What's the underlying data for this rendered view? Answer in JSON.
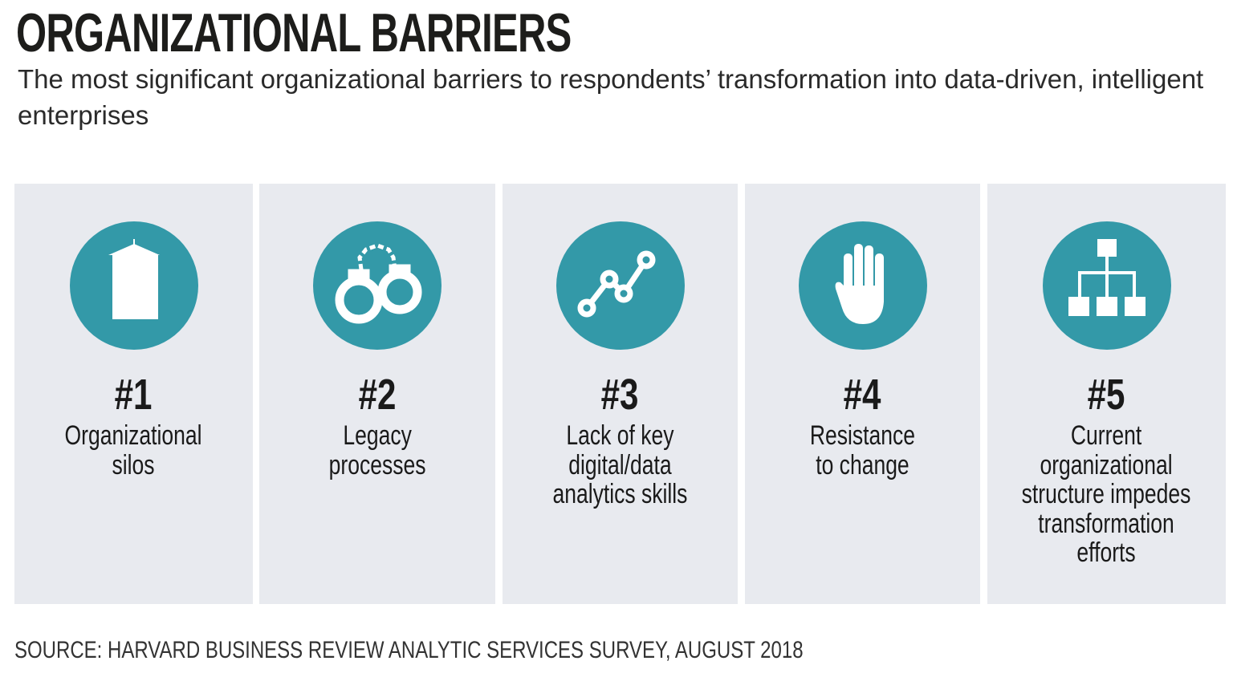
{
  "title": "ORGANIZATIONAL BARRIERS",
  "subtitle": "The most significant organizational barriers to respondents’ transformation into data-driven, intelligent enterprises",
  "accent": "#3399a8",
  "barriers": [
    {
      "rank": "#1",
      "label": "Organizational silos",
      "icon": "silo-icon"
    },
    {
      "rank": "#2",
      "label": "Legacy processes",
      "icon": "handcuffs-icon"
    },
    {
      "rank": "#3",
      "label": "Lack of key digital/data analytics skills",
      "icon": "line-chart-icon"
    },
    {
      "rank": "#4",
      "label": "Resistance to change",
      "icon": "hand-stop-icon"
    },
    {
      "rank": "#5",
      "label": "Current organizational structure impedes transformation efforts",
      "icon": "org-chart-icon"
    }
  ],
  "source": "SOURCE: HARVARD BUSINESS REVIEW ANALYTIC SERVICES SURVEY, AUGUST 2018"
}
